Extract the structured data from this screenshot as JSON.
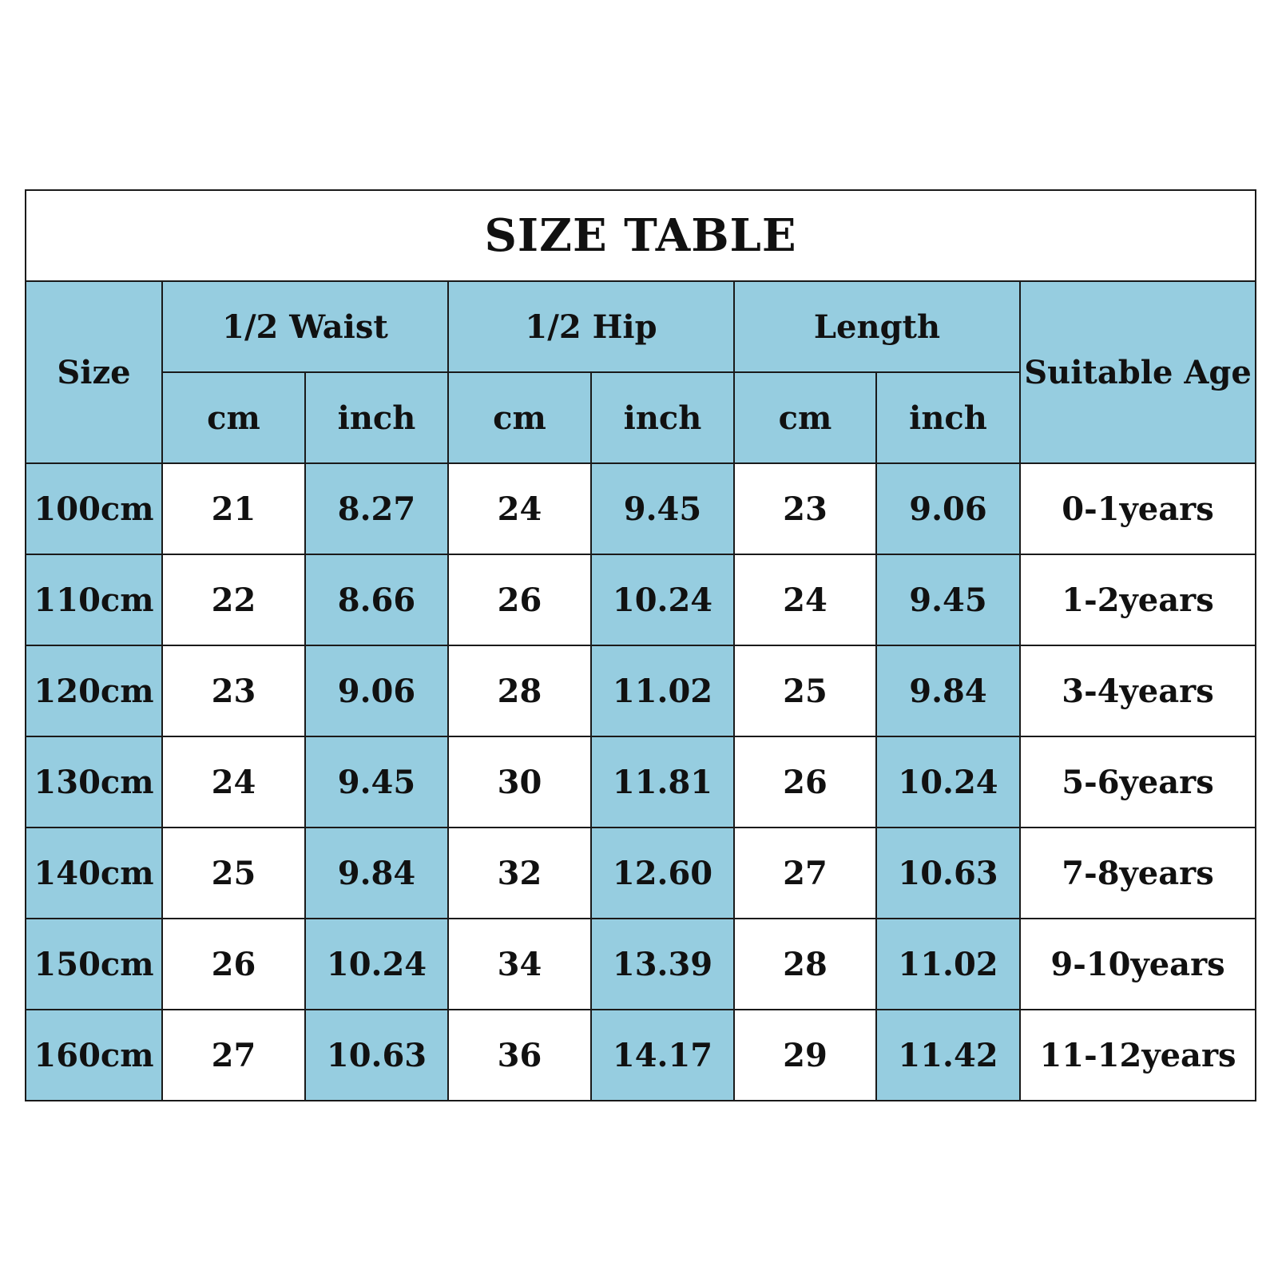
{
  "title": "SIZE TABLE",
  "colors": {
    "accent": "#96cde0",
    "border": "#1a1a1a"
  },
  "headers": {
    "size": "Size",
    "waist": "1/2 Waist",
    "hip": "1/2 Hip",
    "length": "Length",
    "age": "Suitable Age",
    "units": [
      "cm",
      "inch",
      "cm",
      "inch",
      "cm",
      "inch"
    ]
  },
  "rows": [
    [
      "100cm",
      "21",
      "8.27",
      "24",
      "9.45",
      "23",
      "9.06",
      "0-1years"
    ],
    [
      "110cm",
      "22",
      "8.66",
      "26",
      "10.24",
      "24",
      "9.45",
      "1-2years"
    ],
    [
      "120cm",
      "23",
      "9.06",
      "28",
      "11.02",
      "25",
      "9.84",
      "3-4years"
    ],
    [
      "130cm",
      "24",
      "9.45",
      "30",
      "11.81",
      "26",
      "10.24",
      "5-6years"
    ],
    [
      "140cm",
      "25",
      "9.84",
      "32",
      "12.60",
      "27",
      "10.63",
      "7-8years"
    ],
    [
      "150cm",
      "26",
      "10.24",
      "34",
      "13.39",
      "28",
      "11.02",
      "9-10years"
    ],
    [
      "160cm",
      "27",
      "10.63",
      "36",
      "14.17",
      "29",
      "11.42",
      "11-12years"
    ]
  ]
}
